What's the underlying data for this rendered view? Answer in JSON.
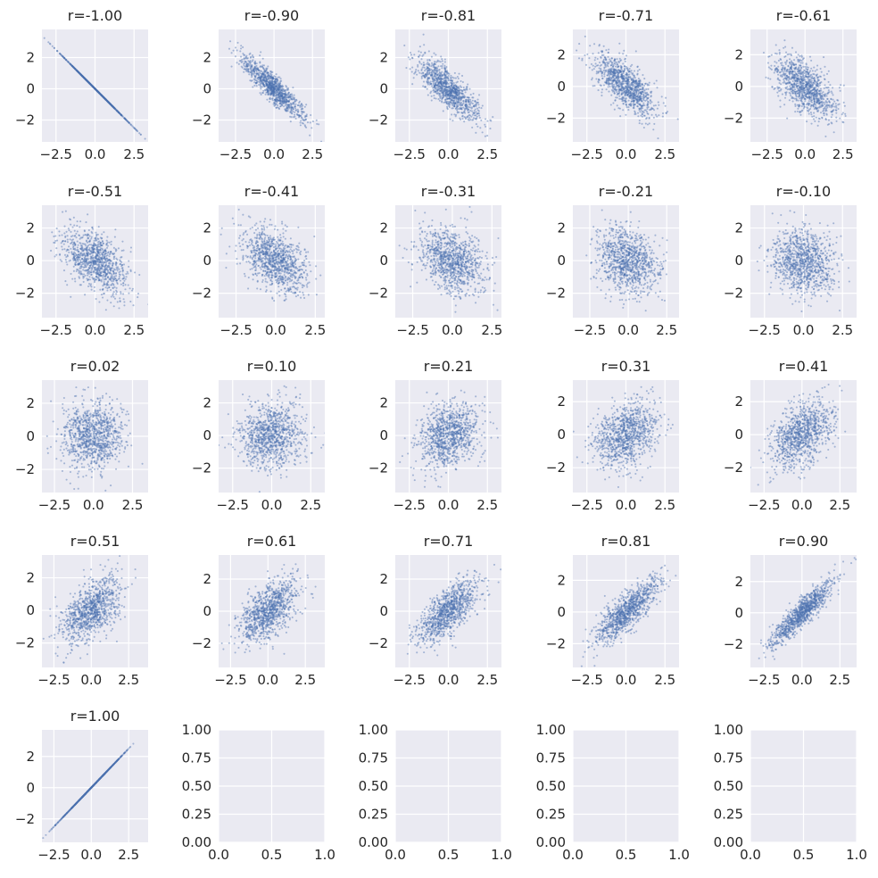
{
  "figure": {
    "background": "#ffffff",
    "axes_bg": "#eaeaf2",
    "grid_color": "#ffffff",
    "text_color": "#262626",
    "point_color": "#4c72b0"
  },
  "chart_data": [
    {
      "type": "scatter",
      "title": "r=-1.00",
      "r": -1.0,
      "n": 1000,
      "xlim": [
        -3.4,
        3.4
      ],
      "ylim": [
        -3.4,
        3.8
      ],
      "xticks": [
        -2.5,
        0.0,
        2.5
      ],
      "xticklabels": [
        "−2.5",
        "0.0",
        "2.5"
      ],
      "yticks": [
        -2,
        0,
        2
      ],
      "yticklabels": [
        "−2",
        "0",
        "2"
      ],
      "grid": true
    },
    {
      "type": "scatter",
      "title": "r=-0.90",
      "r": -0.9,
      "n": 1000,
      "xlim": [
        -3.6,
        3.3
      ],
      "ylim": [
        -3.4,
        3.8
      ],
      "xticks": [
        -2.5,
        0.0,
        2.5
      ],
      "xticklabels": [
        "−2.5",
        "0.0",
        "2.5"
      ],
      "yticks": [
        -2,
        0,
        2
      ],
      "yticklabels": [
        "−2",
        "0",
        "2"
      ],
      "grid": true
    },
    {
      "type": "scatter",
      "title": "r=-0.81",
      "r": -0.81,
      "n": 1000,
      "xlim": [
        -3.4,
        3.4
      ],
      "ylim": [
        -3.4,
        3.8
      ],
      "xticks": [
        -2.5,
        0.0,
        2.5
      ],
      "xticklabels": [
        "−2.5",
        "0.0",
        "2.5"
      ],
      "yticks": [
        -2,
        0,
        2
      ],
      "yticklabels": [
        "−2",
        "0",
        "2"
      ],
      "grid": true
    },
    {
      "type": "scatter",
      "title": "r=-0.71",
      "r": -0.71,
      "n": 1000,
      "xlim": [
        -3.4,
        3.4
      ],
      "ylim": [
        -3.5,
        3.6
      ],
      "xticks": [
        -2.5,
        0.0,
        2.5
      ],
      "xticklabels": [
        "−2.5",
        "0.0",
        "2.5"
      ],
      "yticks": [
        -2,
        0,
        2
      ],
      "yticklabels": [
        "−2",
        "0",
        "2"
      ],
      "grid": true
    },
    {
      "type": "scatter",
      "title": "r=-0.61",
      "r": -0.61,
      "n": 1000,
      "xlim": [
        -3.6,
        3.4
      ],
      "ylim": [
        -3.5,
        3.6
      ],
      "xticks": [
        -2.5,
        0.0,
        2.5
      ],
      "xticklabels": [
        "−2.5",
        "0.0",
        "2.5"
      ],
      "yticks": [
        -2,
        0,
        2
      ],
      "yticklabels": [
        "−2",
        "0",
        "2"
      ],
      "grid": true
    },
    {
      "type": "scatter",
      "title": "r=-0.51",
      "r": -0.51,
      "n": 1000,
      "xlim": [
        -3.4,
        3.4
      ],
      "ylim": [
        -3.5,
        3.4
      ],
      "xticks": [
        -2.5,
        0.0,
        2.5
      ],
      "xticklabels": [
        "−2.5",
        "0.0",
        "2.5"
      ],
      "yticks": [
        -2,
        0,
        2
      ],
      "yticklabels": [
        "−2",
        "0",
        "2"
      ],
      "grid": true
    },
    {
      "type": "scatter",
      "title": "r=-0.41",
      "r": -0.41,
      "n": 1000,
      "xlim": [
        -3.6,
        3.1
      ],
      "ylim": [
        -3.5,
        3.4
      ],
      "xticks": [
        -2.5,
        0.0,
        2.5
      ],
      "xticklabels": [
        "−2.5",
        "0.0",
        "2.5"
      ],
      "yticks": [
        -2,
        0,
        2
      ],
      "yticklabels": [
        "−2",
        "0",
        "2"
      ],
      "grid": true
    },
    {
      "type": "scatter",
      "title": "r=-0.31",
      "r": -0.31,
      "n": 1000,
      "xlim": [
        -3.6,
        3.1
      ],
      "ylim": [
        -3.5,
        3.4
      ],
      "xticks": [
        -2.5,
        0.0,
        2.5
      ],
      "xticklabels": [
        "−2.5",
        "0.0",
        "2.5"
      ],
      "yticks": [
        -2,
        0,
        2
      ],
      "yticklabels": [
        "−2",
        "0",
        "2"
      ],
      "grid": true
    },
    {
      "type": "scatter",
      "title": "r=-0.21",
      "r": -0.21,
      "n": 1000,
      "xlim": [
        -3.6,
        3.3
      ],
      "ylim": [
        -3.5,
        3.4
      ],
      "xticks": [
        -2.5,
        0.0,
        2.5
      ],
      "xticklabels": [
        "−2.5",
        "0.0",
        "2.5"
      ],
      "yticks": [
        -2,
        0,
        2
      ],
      "yticklabels": [
        "−2",
        "0",
        "2"
      ],
      "grid": true
    },
    {
      "type": "scatter",
      "title": "r=-0.10",
      "r": -0.1,
      "n": 1000,
      "xlim": [
        -3.4,
        3.4
      ],
      "ylim": [
        -3.5,
        3.4
      ],
      "xticks": [
        -2.5,
        0.0,
        2.5
      ],
      "xticklabels": [
        "−2.5",
        "0.0",
        "2.5"
      ],
      "yticks": [
        -2,
        0,
        2
      ],
      "yticklabels": [
        "−2",
        "0",
        "2"
      ],
      "grid": true
    },
    {
      "type": "scatter",
      "title": "r=0.02",
      "r": 0.02,
      "n": 1000,
      "xlim": [
        -3.3,
        3.5
      ],
      "ylim": [
        -3.4,
        3.4
      ],
      "xticks": [
        -2.5,
        0.0,
        2.5
      ],
      "xticklabels": [
        "−2.5",
        "0.0",
        "2.5"
      ],
      "yticks": [
        -2,
        0,
        2
      ],
      "yticklabels": [
        "−2",
        "0",
        "2"
      ],
      "grid": true
    },
    {
      "type": "scatter",
      "title": "r=0.10",
      "r": 0.1,
      "n": 1000,
      "xlim": [
        -3.4,
        3.4
      ],
      "ylim": [
        -3.5,
        3.4
      ],
      "xticks": [
        -2.5,
        0.0,
        2.5
      ],
      "xticklabels": [
        "−2.5",
        "0.0",
        "2.5"
      ],
      "yticks": [
        -2,
        0,
        2
      ],
      "yticklabels": [
        "−2",
        "0",
        "2"
      ],
      "grid": true
    },
    {
      "type": "scatter",
      "title": "r=0.21",
      "r": 0.21,
      "n": 1000,
      "xlim": [
        -3.4,
        3.4
      ],
      "ylim": [
        -3.5,
        3.4
      ],
      "xticks": [
        -2.5,
        0.0,
        2.5
      ],
      "xticklabels": [
        "−2.5",
        "0.0",
        "2.5"
      ],
      "yticks": [
        -2,
        0,
        2
      ],
      "yticklabels": [
        "−2",
        "0",
        "2"
      ],
      "grid": true
    },
    {
      "type": "scatter",
      "title": "r=0.31",
      "r": 0.31,
      "n": 1000,
      "xlim": [
        -3.4,
        3.4
      ],
      "ylim": [
        -3.5,
        3.3
      ],
      "xticks": [
        -2.5,
        0.0,
        2.5
      ],
      "xticklabels": [
        "−2.5",
        "0.0",
        "2.5"
      ],
      "yticks": [
        -2,
        0,
        2
      ],
      "yticklabels": [
        "−2",
        "0",
        "2"
      ],
      "grid": true
    },
    {
      "type": "scatter",
      "title": "r=0.41",
      "r": 0.41,
      "n": 1000,
      "xlim": [
        -3.4,
        3.6
      ],
      "ylim": [
        -3.5,
        3.3
      ],
      "xticks": [
        -2.5,
        0.0,
        2.5
      ],
      "xticklabels": [
        "−2.5",
        "0.0",
        "2.5"
      ],
      "yticks": [
        -2,
        0,
        2
      ],
      "yticklabels": [
        "−2",
        "0",
        "2"
      ],
      "grid": true
    },
    {
      "type": "scatter",
      "title": "r=0.51",
      "r": 0.51,
      "n": 1000,
      "xlim": [
        -3.3,
        3.8
      ],
      "ylim": [
        -3.5,
        3.4
      ],
      "xticks": [
        -2.5,
        0.0,
        2.5
      ],
      "xticklabels": [
        "−2.5",
        "0.0",
        "2.5"
      ],
      "yticks": [
        -2,
        0,
        2
      ],
      "yticklabels": [
        "−2",
        "0",
        "2"
      ],
      "grid": true
    },
    {
      "type": "scatter",
      "title": "r=0.61",
      "r": 0.61,
      "n": 1000,
      "xlim": [
        -3.3,
        3.8
      ],
      "ylim": [
        -3.5,
        3.5
      ],
      "xticks": [
        -2.5,
        0.0,
        2.5
      ],
      "xticklabels": [
        "−2.5",
        "0.0",
        "2.5"
      ],
      "yticks": [
        -2,
        0,
        2
      ],
      "yticklabels": [
        "−2",
        "0",
        "2"
      ],
      "grid": true
    },
    {
      "type": "scatter",
      "title": "r=0.71",
      "r": 0.71,
      "n": 1000,
      "xlim": [
        -3.4,
        3.4
      ],
      "ylim": [
        -3.5,
        3.5
      ],
      "xticks": [
        -2.5,
        0.0,
        2.5
      ],
      "xticklabels": [
        "−2.5",
        "0.0",
        "2.5"
      ],
      "yticks": [
        -2,
        0,
        2
      ],
      "yticklabels": [
        "−2",
        "0",
        "2"
      ],
      "grid": true
    },
    {
      "type": "scatter",
      "title": "r=0.81",
      "r": 0.81,
      "n": 1000,
      "xlim": [
        -3.4,
        3.4
      ],
      "ylim": [
        -3.5,
        3.6
      ],
      "xticks": [
        -2.5,
        0.0,
        2.5
      ],
      "xticklabels": [
        "−2.5",
        "0.0",
        "2.5"
      ],
      "yticks": [
        -2,
        0,
        2
      ],
      "yticklabels": [
        "−2",
        "0",
        "2"
      ],
      "grid": true
    },
    {
      "type": "scatter",
      "title": "r=0.90",
      "r": 0.9,
      "n": 1000,
      "xlim": [
        -3.4,
        3.6
      ],
      "ylim": [
        -3.5,
        3.7
      ],
      "xticks": [
        -2.5,
        0.0,
        2.5
      ],
      "xticklabels": [
        "−2.5",
        "0.0",
        "2.5"
      ],
      "yticks": [
        -2,
        0,
        2
      ],
      "yticklabels": [
        "−2",
        "0",
        "2"
      ],
      "grid": true
    },
    {
      "type": "scatter",
      "title": "r=1.00",
      "r": 1.0,
      "n": 1000,
      "xlim": [
        -3.3,
        3.8
      ],
      "ylim": [
        -3.5,
        3.7
      ],
      "xticks": [
        -2.5,
        0.0,
        2.5
      ],
      "xticklabels": [
        "−2.5",
        "0.0",
        "2.5"
      ],
      "yticks": [
        -2,
        0,
        2
      ],
      "yticklabels": [
        "−2",
        "0",
        "2"
      ],
      "grid": true
    },
    {
      "type": "scatter",
      "title": "",
      "n": 0,
      "xlim": [
        0,
        1
      ],
      "ylim": [
        0,
        1
      ],
      "xticks": [
        0,
        0.5,
        1
      ],
      "xticklabels": [
        "0.0",
        "0.5",
        "1.0"
      ],
      "yticks": [
        0,
        0.25,
        0.5,
        0.75,
        1
      ],
      "yticklabels": [
        "0.00",
        "0.25",
        "0.50",
        "0.75",
        "1.00"
      ],
      "grid": true
    },
    {
      "type": "scatter",
      "title": "",
      "n": 0,
      "xlim": [
        0,
        1
      ],
      "ylim": [
        0,
        1
      ],
      "xticks": [
        0,
        0.5,
        1
      ],
      "xticklabels": [
        "0.0",
        "0.5",
        "1.0"
      ],
      "yticks": [
        0,
        0.25,
        0.5,
        0.75,
        1
      ],
      "yticklabels": [
        "0.00",
        "0.25",
        "0.50",
        "0.75",
        "1.00"
      ],
      "grid": true
    },
    {
      "type": "scatter",
      "title": "",
      "n": 0,
      "xlim": [
        0,
        1
      ],
      "ylim": [
        0,
        1
      ],
      "xticks": [
        0,
        0.5,
        1
      ],
      "xticklabels": [
        "0.0",
        "0.5",
        "1.0"
      ],
      "yticks": [
        0,
        0.25,
        0.5,
        0.75,
        1
      ],
      "yticklabels": [
        "0.00",
        "0.25",
        "0.50",
        "0.75",
        "1.00"
      ],
      "grid": true
    },
    {
      "type": "scatter",
      "title": "",
      "n": 0,
      "xlim": [
        0,
        1
      ],
      "ylim": [
        0,
        1
      ],
      "xticks": [
        0,
        0.5,
        1
      ],
      "xticklabels": [
        "0.0",
        "0.5",
        "1.0"
      ],
      "yticks": [
        0,
        0.25,
        0.5,
        0.75,
        1
      ],
      "yticklabels": [
        "0.00",
        "0.25",
        "0.50",
        "0.75",
        "1.00"
      ],
      "grid": true
    }
  ]
}
